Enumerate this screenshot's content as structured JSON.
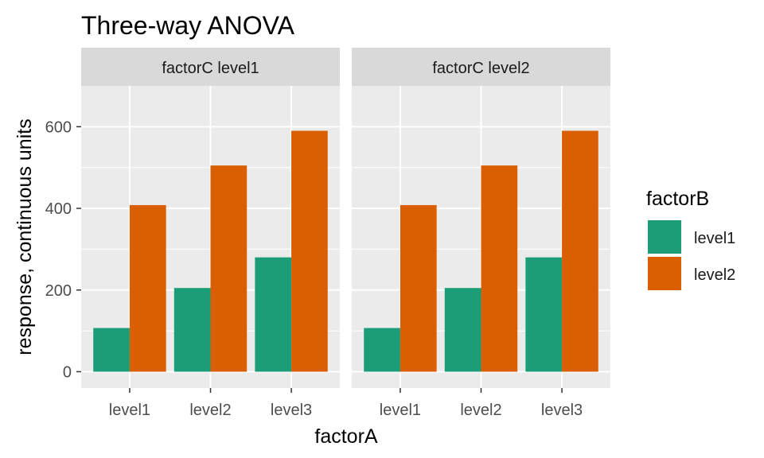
{
  "chart_data": {
    "type": "bar",
    "title": "Three-way ANOVA",
    "xlabel": "factorA",
    "ylabel": "response, continuous units",
    "ylim": [
      -40,
      700
    ],
    "yticks": [
      0,
      200,
      400,
      600
    ],
    "categories": [
      "level1",
      "level2",
      "level3"
    ],
    "facet_variable": "factorC",
    "facets": [
      {
        "label": "factorC level1",
        "series": [
          {
            "name": "level1",
            "values": [
              107,
              205,
              280
            ]
          },
          {
            "name": "level2",
            "values": [
              408,
              505,
              590
            ]
          }
        ]
      },
      {
        "label": "factorC level2",
        "series": [
          {
            "name": "level1",
            "values": [
              107,
              205,
              280
            ]
          },
          {
            "name": "level2",
            "values": [
              408,
              505,
              590
            ]
          }
        ]
      }
    ],
    "legend": {
      "title": "factorB",
      "position": "right",
      "items": [
        "level1",
        "level2"
      ]
    },
    "colors": {
      "level1": "#1b9e77",
      "level2": "#d95f02"
    },
    "panel_background": "#ebebeb",
    "strip_background": "#d9d9d9",
    "grid": true
  }
}
